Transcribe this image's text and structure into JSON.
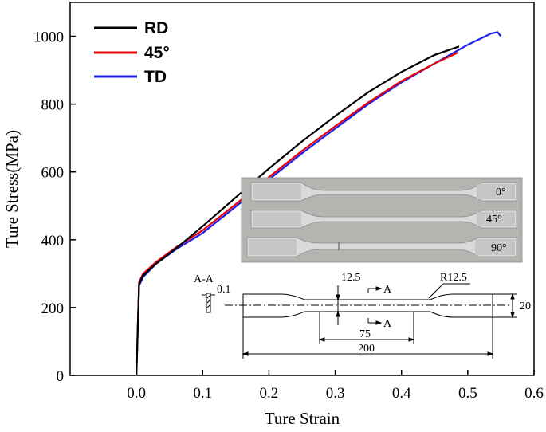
{
  "chart_data": {
    "type": "line",
    "xlabel": "Ture Strain",
    "ylabel": "Ture Stress(MPa)",
    "xlim": [
      -0.1,
      0.6
    ],
    "ylim": [
      0,
      1100
    ],
    "xticks": [
      "0.0",
      "0.1",
      "0.2",
      "0.3",
      "0.4",
      "0.5",
      "0.6"
    ],
    "yticks": [
      "0",
      "200",
      "400",
      "600",
      "800",
      "1000"
    ],
    "legend_position": "top-left",
    "series": [
      {
        "name": "RD",
        "color": "#000000",
        "x": [
          0.0,
          0.004,
          0.01,
          0.03,
          0.06,
          0.1,
          0.15,
          0.2,
          0.25,
          0.3,
          0.35,
          0.4,
          0.45,
          0.487
        ],
        "y": [
          0,
          270,
          295,
          330,
          375,
          440,
          525,
          610,
          690,
          765,
          835,
          895,
          945,
          970
        ]
      },
      {
        "name": "45°",
        "color": "#e8000b",
        "x": [
          0.0,
          0.004,
          0.01,
          0.03,
          0.06,
          0.1,
          0.15,
          0.2,
          0.25,
          0.3,
          0.35,
          0.4,
          0.45,
          0.485
        ],
        "y": [
          0,
          275,
          300,
          335,
          378,
          428,
          505,
          585,
          662,
          735,
          805,
          868,
          920,
          952
        ]
      },
      {
        "name": "TD",
        "color": "#1f1fe6",
        "x": [
          0.0,
          0.004,
          0.01,
          0.03,
          0.06,
          0.1,
          0.15,
          0.2,
          0.25,
          0.3,
          0.35,
          0.4,
          0.45,
          0.5,
          0.535,
          0.545,
          0.55
        ],
        "y": [
          0,
          265,
          290,
          330,
          372,
          420,
          498,
          578,
          655,
          728,
          800,
          864,
          920,
          975,
          1008,
          1012,
          1000
        ]
      }
    ]
  },
  "inset": {
    "section_label": "A-A",
    "thickness": "0.1",
    "radius_dim": "R12.5",
    "grip_width_dim": "12.5",
    "total_width_dim": "20",
    "gauge_length_dim": "75",
    "total_length_dim": "200",
    "section_marker": "A",
    "specimen_marks": [
      "0°",
      "45°",
      "90°"
    ]
  }
}
